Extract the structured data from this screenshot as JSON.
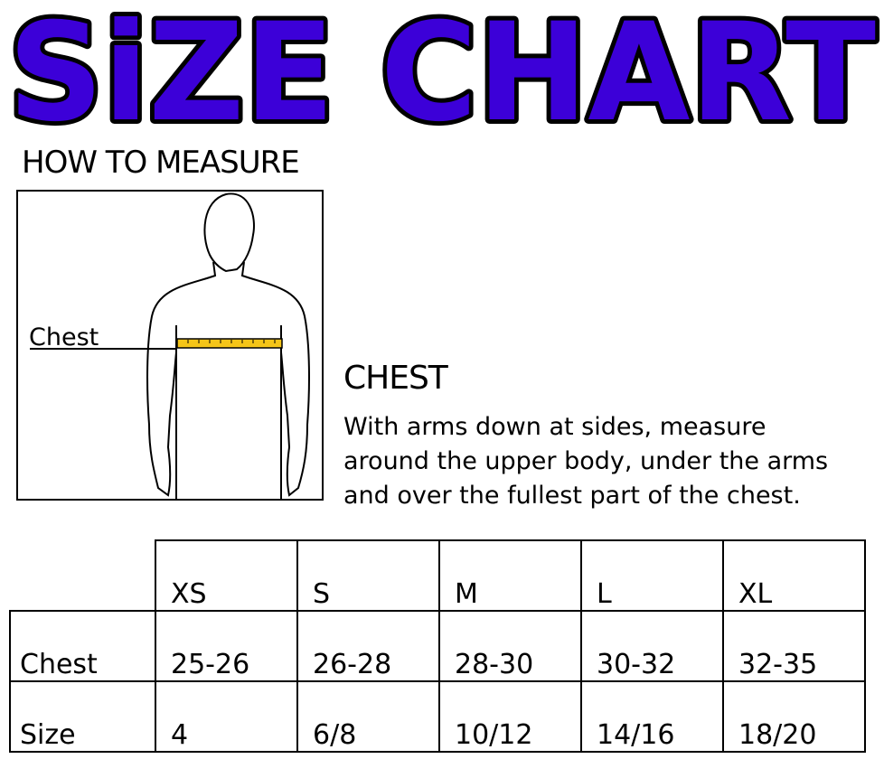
{
  "title": "SiZE CHART",
  "title_color": "#3c00d8",
  "how_to_measure": "HOW TO MEASURE",
  "figure": {
    "label": "Chest",
    "tape_color": "#f5c518"
  },
  "chest": {
    "heading": "CHEST",
    "description": [
      "With arms down at sides, measure",
      "around the upper body, under the arms",
      "and over the fullest part of the chest."
    ]
  },
  "table": {
    "sizes": [
      "XS",
      "S",
      "M",
      "L",
      "XL"
    ],
    "rows": [
      {
        "label": "Chest",
        "values": [
          "25-26",
          "26-28",
          "28-30",
          "30-32",
          "32-35"
        ]
      },
      {
        "label": "Size",
        "values": [
          "4",
          "6/8",
          "10/12",
          "14/16",
          "18/20"
        ]
      }
    ]
  }
}
